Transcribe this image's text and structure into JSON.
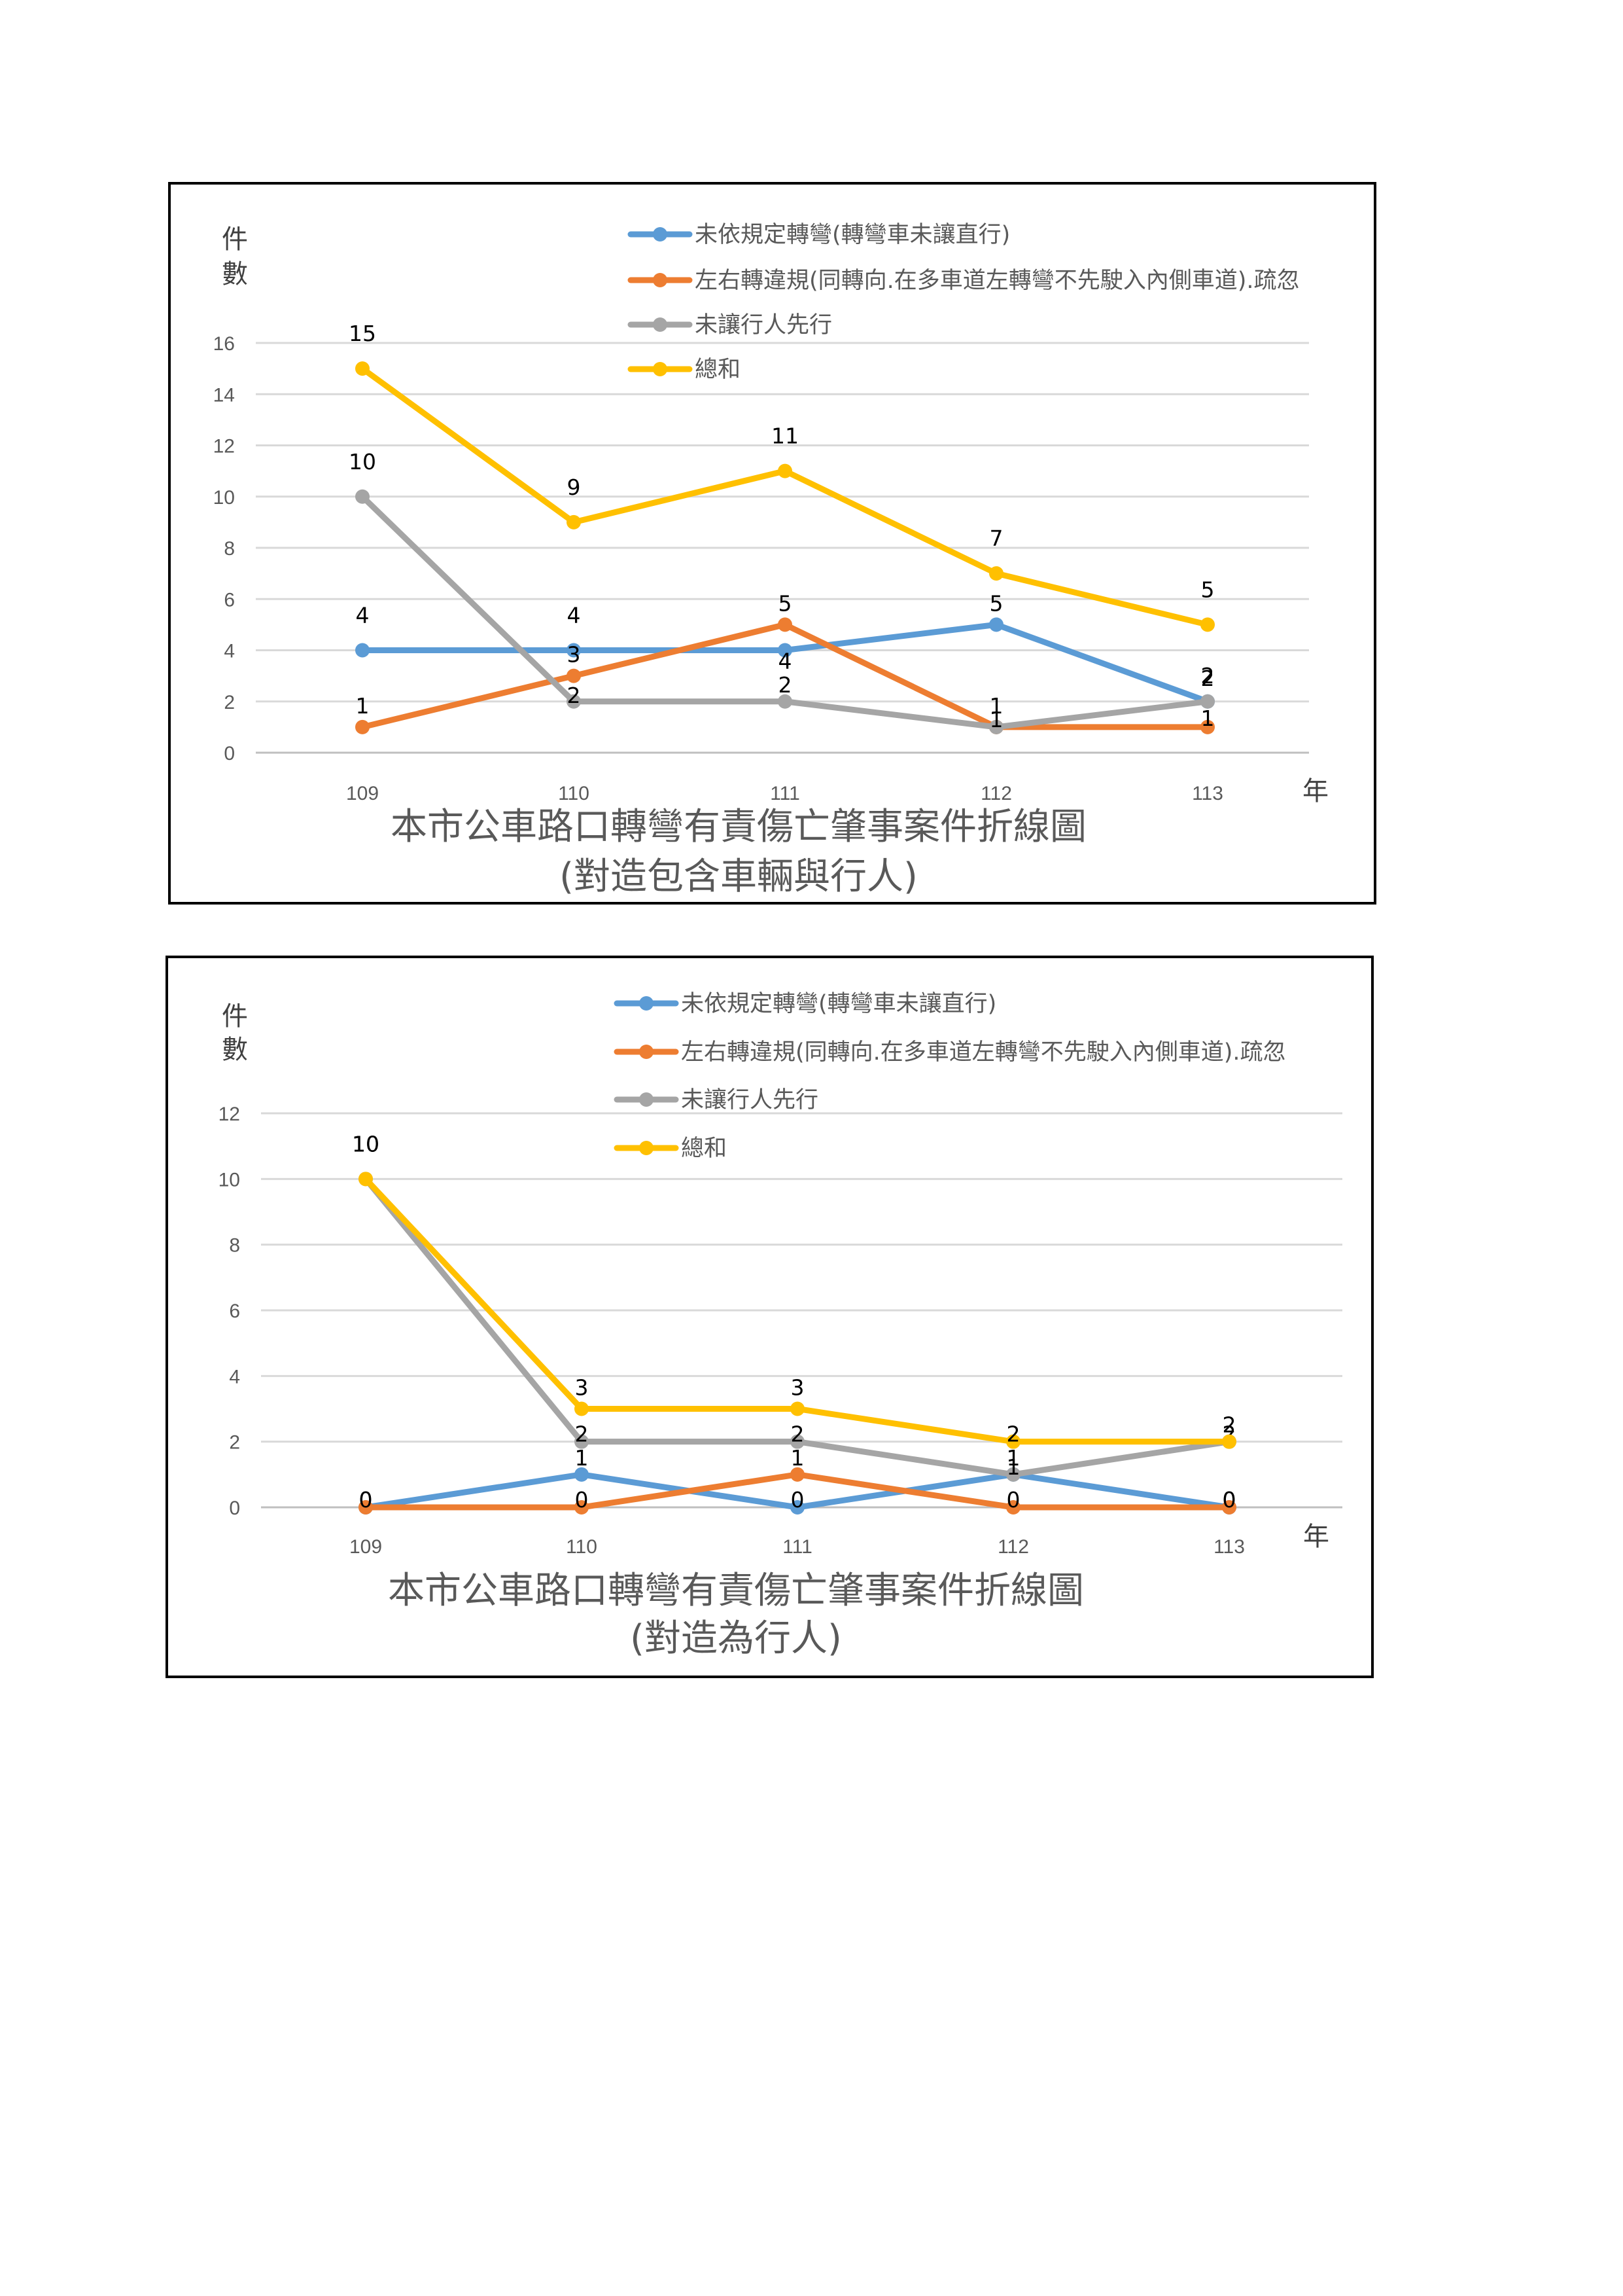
{
  "chart_data": [
    {
      "type": "line",
      "title": "本市公車路口轉彎有責傷亡肇事案件折線圖",
      "subtitle": "(對造包含車輛與行人)",
      "ylabel": "件數",
      "xlabel": "年",
      "categories": [
        "109",
        "110",
        "111",
        "112",
        "113"
      ],
      "ylim": [
        0,
        16
      ],
      "yticks": [
        0,
        2,
        4,
        6,
        8,
        10,
        12,
        14,
        16
      ],
      "grid": true,
      "legend_position": "top",
      "series": [
        {
          "name": "未依規定轉彎(轉彎車未讓直行)",
          "color": "#5B9BD5",
          "values": [
            4,
            4,
            4,
            5,
            2
          ]
        },
        {
          "name": "左右轉違規(同轉向.在多車道左轉彎不先駛入內側車道).疏忽",
          "color": "#ED7D31",
          "values": [
            1,
            3,
            5,
            1,
            1
          ]
        },
        {
          "name": "未讓行人先行",
          "color": "#A5A5A5",
          "values": [
            10,
            2,
            2,
            1,
            2
          ]
        },
        {
          "name": "總和",
          "color": "#FFC000",
          "values": [
            15,
            9,
            11,
            7,
            5
          ]
        }
      ]
    },
    {
      "type": "line",
      "title": "本市公車路口轉彎有責傷亡肇事案件折線圖",
      "subtitle": "(對造為行人)",
      "ylabel": "件數",
      "xlabel": "年",
      "categories": [
        "109",
        "110",
        "111",
        "112",
        "113"
      ],
      "ylim": [
        0,
        12
      ],
      "yticks": [
        0,
        2,
        4,
        6,
        8,
        10,
        12
      ],
      "grid": true,
      "legend_position": "top",
      "series": [
        {
          "name": "未依規定轉彎(轉彎車未讓直行)",
          "color": "#5B9BD5",
          "values": [
            0,
            1,
            0,
            1,
            0
          ]
        },
        {
          "name": "左右轉違規(同轉向.在多車道左轉彎不先駛入內側車道).疏忽",
          "color": "#ED7D31",
          "values": [
            0,
            0,
            1,
            0,
            0
          ]
        },
        {
          "name": "未讓行人先行",
          "color": "#A5A5A5",
          "values": [
            10,
            2,
            2,
            1,
            2
          ]
        },
        {
          "name": "總和",
          "color": "#FFC000",
          "values": [
            10,
            3,
            3,
            2,
            2
          ]
        }
      ]
    }
  ]
}
